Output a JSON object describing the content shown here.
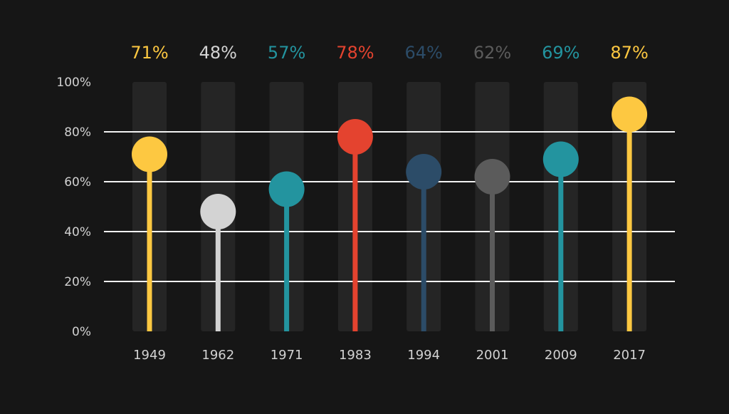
{
  "chart_data": {
    "type": "lollipop",
    "categories": [
      "1949",
      "1962",
      "1971",
      "1983",
      "1994",
      "2001",
      "2009",
      "2017"
    ],
    "values": [
      71,
      48,
      57,
      78,
      64,
      62,
      69,
      87
    ],
    "value_labels": [
      "71%",
      "48%",
      "57%",
      "78%",
      "64%",
      "62%",
      "69%",
      "87%"
    ],
    "colors": [
      "#fdc841",
      "#d3d3d3",
      "#23949f",
      "#e4432f",
      "#2c4c68",
      "#5b5b5b",
      "#23949f",
      "#fdc841"
    ],
    "ylim": [
      0,
      100
    ],
    "yticks": [
      0,
      20,
      40,
      60,
      80,
      100
    ],
    "ytick_labels": [
      "0%",
      "20%",
      "40%",
      "60%",
      "80%",
      "100%"
    ],
    "gridlines_at": [
      20,
      40,
      60,
      80
    ],
    "grid": true,
    "legend": false,
    "background": "#161616",
    "track_color": "#252525",
    "gridline_color": "#f2f2f2"
  }
}
